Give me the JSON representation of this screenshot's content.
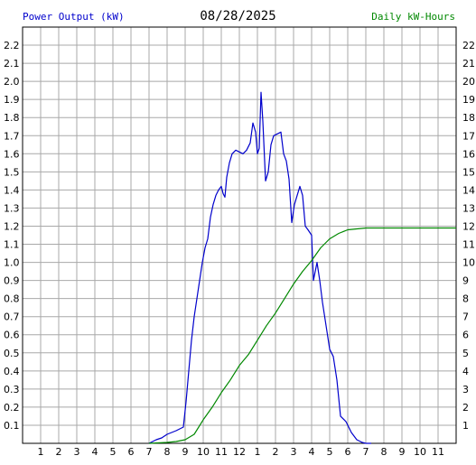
{
  "header": {
    "left_label": "Power Output (kW)",
    "center_label": "08/28/2025",
    "right_label": "Daily kW-Hours"
  },
  "colors": {
    "power": "#0000cc",
    "energy": "#008800",
    "grid": "#a8a8a8",
    "frame": "#000000"
  },
  "chart_data": {
    "type": "line",
    "title": "08/28/2025",
    "x_ticks": [
      "1",
      "2",
      "3",
      "4",
      "5",
      "6",
      "7",
      "8",
      "9",
      "10",
      "11",
      "12",
      "1",
      "2",
      "3",
      "4",
      "5",
      "6",
      "7",
      "8",
      "9",
      "10",
      "11"
    ],
    "x_range_hours": [
      0,
      24
    ],
    "y_left": {
      "label": "Power Output (kW)",
      "range": [
        0,
        2.3
      ],
      "ticks": [
        "0.1",
        "0.2",
        "0.3",
        "0.4",
        "0.5",
        "0.6",
        "0.7",
        "0.8",
        "0.9",
        "1.0",
        "1.1",
        "1.2",
        "1.3",
        "1.4",
        "1.5",
        "1.6",
        "1.7",
        "1.8",
        "1.9",
        "2.0",
        "2.1",
        "2.2"
      ]
    },
    "y_right": {
      "label": "Daily kW-Hours",
      "range": [
        0,
        23
      ],
      "ticks": [
        "1",
        "2",
        "3",
        "4",
        "5",
        "6",
        "7",
        "8",
        "9",
        "10",
        "11",
        "12",
        "13",
        "14",
        "15",
        "16",
        "17",
        "18",
        "19",
        "20",
        "21",
        "22"
      ]
    },
    "grid": true,
    "series": [
      {
        "name": "Power Output (kW)",
        "axis": "left",
        "points": [
          [
            7.0,
            0
          ],
          [
            7.4,
            0.02
          ],
          [
            7.7,
            0.03
          ],
          [
            8.0,
            0.05
          ],
          [
            8.5,
            0.07
          ],
          [
            8.9,
            0.09
          ],
          [
            9.05,
            0.23
          ],
          [
            9.2,
            0.4
          ],
          [
            9.35,
            0.57
          ],
          [
            9.5,
            0.7
          ],
          [
            9.65,
            0.8
          ],
          [
            9.8,
            0.9
          ],
          [
            9.95,
            1.0
          ],
          [
            10.1,
            1.08
          ],
          [
            10.25,
            1.13
          ],
          [
            10.4,
            1.25
          ],
          [
            10.55,
            1.32
          ],
          [
            10.7,
            1.37
          ],
          [
            10.85,
            1.4
          ],
          [
            11.0,
            1.42
          ],
          [
            11.1,
            1.38
          ],
          [
            11.2,
            1.36
          ],
          [
            11.3,
            1.47
          ],
          [
            11.45,
            1.55
          ],
          [
            11.6,
            1.6
          ],
          [
            11.8,
            1.62
          ],
          [
            12.0,
            1.61
          ],
          [
            12.2,
            1.6
          ],
          [
            12.4,
            1.62
          ],
          [
            12.6,
            1.66
          ],
          [
            12.75,
            1.77
          ],
          [
            12.9,
            1.72
          ],
          [
            13.0,
            1.6
          ],
          [
            13.1,
            1.63
          ],
          [
            13.2,
            1.94
          ],
          [
            13.3,
            1.78
          ],
          [
            13.45,
            1.45
          ],
          [
            13.6,
            1.5
          ],
          [
            13.75,
            1.65
          ],
          [
            13.9,
            1.7
          ],
          [
            14.1,
            1.71
          ],
          [
            14.3,
            1.72
          ],
          [
            14.45,
            1.6
          ],
          [
            14.6,
            1.56
          ],
          [
            14.75,
            1.46
          ],
          [
            14.9,
            1.22
          ],
          [
            15.05,
            1.32
          ],
          [
            15.2,
            1.37
          ],
          [
            15.35,
            1.42
          ],
          [
            15.5,
            1.37
          ],
          [
            15.65,
            1.2
          ],
          [
            15.8,
            1.18
          ],
          [
            16.0,
            1.15
          ],
          [
            16.1,
            0.9
          ],
          [
            16.3,
            1.0
          ],
          [
            16.45,
            0.9
          ],
          [
            16.6,
            0.78
          ],
          [
            16.8,
            0.65
          ],
          [
            17.0,
            0.52
          ],
          [
            17.2,
            0.48
          ],
          [
            17.4,
            0.35
          ],
          [
            17.6,
            0.15
          ],
          [
            17.9,
            0.12
          ],
          [
            18.2,
            0.06
          ],
          [
            18.5,
            0.02
          ],
          [
            18.8,
            0.005
          ],
          [
            19.0,
            0
          ],
          [
            19.3,
            0
          ]
        ]
      },
      {
        "name": "Daily kW-Hours",
        "axis": "right",
        "points": [
          [
            7.0,
            0
          ],
          [
            8.0,
            0.05
          ],
          [
            8.5,
            0.1
          ],
          [
            9.0,
            0.2
          ],
          [
            9.5,
            0.5
          ],
          [
            10.0,
            1.3
          ],
          [
            10.5,
            2.0
          ],
          [
            11.0,
            2.8
          ],
          [
            11.5,
            3.5
          ],
          [
            12.0,
            4.3
          ],
          [
            12.5,
            4.9
          ],
          [
            13.0,
            5.7
          ],
          [
            13.5,
            6.5
          ],
          [
            14.0,
            7.2
          ],
          [
            14.5,
            8.0
          ],
          [
            15.0,
            8.8
          ],
          [
            15.5,
            9.5
          ],
          [
            16.0,
            10.1
          ],
          [
            16.5,
            10.8
          ],
          [
            17.0,
            11.3
          ],
          [
            17.5,
            11.6
          ],
          [
            18.0,
            11.8
          ],
          [
            18.5,
            11.85
          ],
          [
            19.0,
            11.9
          ],
          [
            20.0,
            11.9
          ],
          [
            22.0,
            11.9
          ],
          [
            24.0,
            11.9
          ]
        ]
      }
    ]
  }
}
